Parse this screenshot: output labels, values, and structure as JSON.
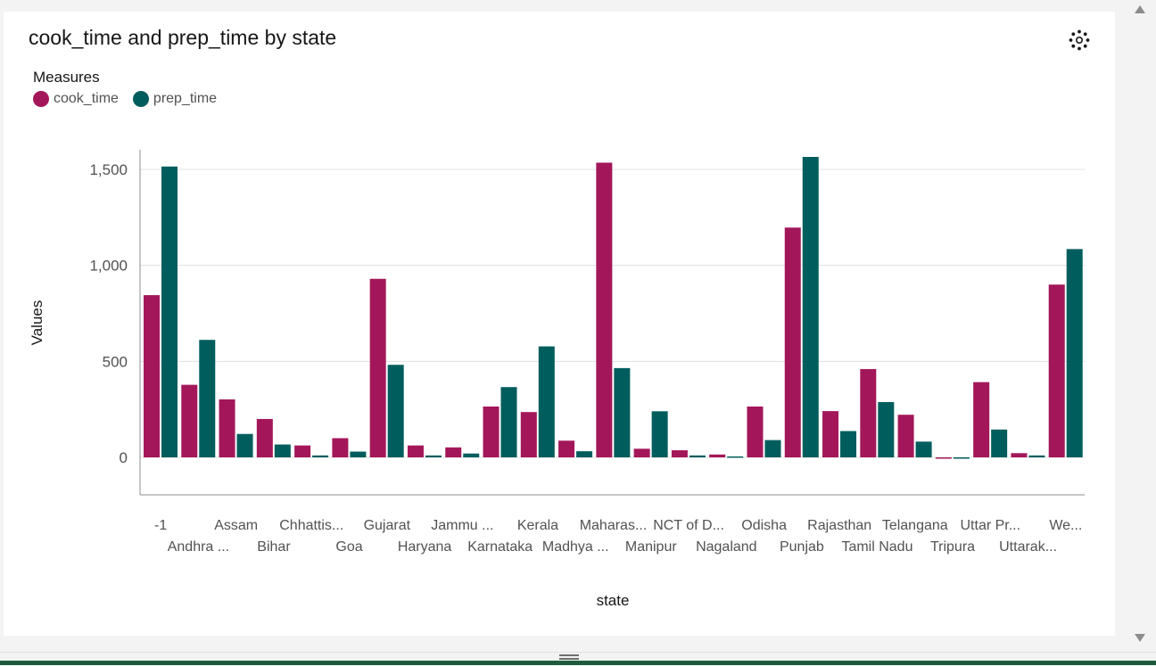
{
  "chart_data": {
    "type": "bar",
    "title": "cook_time and prep_time by state",
    "xlabel": "state",
    "ylabel": "Values",
    "legend_title": "Measures",
    "legend_position": "top-left",
    "ylim": [
      -200,
      1600
    ],
    "yticks": [
      0,
      500,
      1000,
      1500
    ],
    "ytick_labels": [
      "0",
      "500",
      "1,000",
      "1,500"
    ],
    "grid": true,
    "categories": [
      "-1",
      "Andhra ...",
      "Assam",
      "Bihar",
      "Chhattis...",
      "Goa",
      "Gujarat",
      "Haryana",
      "Jammu ...",
      "Karnataka",
      "Kerala",
      "Madhya ...",
      "Maharas...",
      "Manipur",
      "NCT of D...",
      "Nagaland",
      "Odisha",
      "Punjab",
      "Rajasthan",
      "Tamil Nadu",
      "Telangana",
      "Tripura",
      "Uttar Pr...",
      "Uttarak...",
      "We..."
    ],
    "series": [
      {
        "name": "cook_time",
        "color": "#a3175a",
        "values": [
          845,
          378,
          302,
          200,
          62,
          100,
          930,
          62,
          52,
          265,
          236,
          87,
          1535,
          45,
          37,
          15,
          265,
          1197,
          241,
          460,
          222,
          -5,
          392,
          22,
          900
        ]
      },
      {
        "name": "prep_time",
        "color": "#005d5d",
        "values": [
          1515,
          612,
          122,
          67,
          10,
          30,
          482,
          10,
          20,
          366,
          578,
          32,
          465,
          240,
          10,
          5,
          90,
          1565,
          137,
          288,
          82,
          -5,
          145,
          10,
          1085
        ]
      }
    ]
  },
  "icons": {
    "settings": "settings-icon",
    "scroll_up": "chevron-up-icon",
    "scroll_down": "chevron-down-icon"
  }
}
